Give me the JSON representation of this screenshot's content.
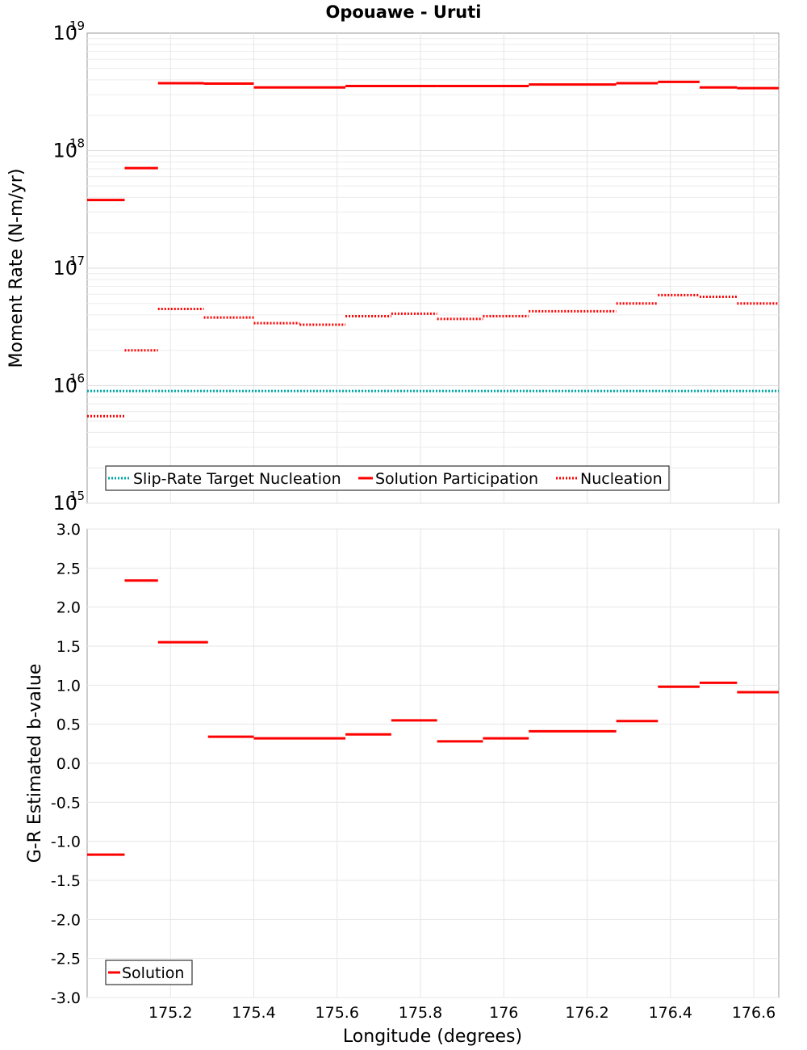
{
  "title": "Opouawe - Uruti",
  "chart_data": [
    {
      "type": "line",
      "subtype": "step-segments",
      "ylabel": "Moment Rate (N-m/yr)",
      "yscale": "log",
      "ylim": [
        1000000000000000.0,
        1e+19
      ],
      "xlim": [
        175.0,
        176.66
      ],
      "y_tick_labels": [
        {
          "base": "10",
          "exp": "15",
          "value": 1000000000000000.0
        },
        {
          "base": "10",
          "exp": "16",
          "value": 1e+16
        },
        {
          "base": "10",
          "exp": "17",
          "value": 1e+17
        },
        {
          "base": "10",
          "exp": "18",
          "value": 1e+18
        },
        {
          "base": "10",
          "exp": "19",
          "value": 1e+19
        }
      ],
      "grid": true,
      "legend_position": "bottom-left",
      "legend": [
        "Slip-Rate Target Nucleation",
        "Solution Participation",
        "Nucleation"
      ],
      "series": [
        {
          "name": "Slip-Rate Target Nucleation",
          "color": "#00aaaa",
          "style": "dotted",
          "segments": [
            {
              "x": [
                175.0,
                176.66
              ],
              "y": 9000000000000000.0
            }
          ]
        },
        {
          "name": "Solution Participation",
          "color": "#ff0000",
          "style": "solid",
          "segments": [
            {
              "x": [
                175.0,
                175.09
              ],
              "y": 3.8e+17
            },
            {
              "x": [
                175.09,
                175.17
              ],
              "y": 7.1e+17
            },
            {
              "x": [
                175.17,
                175.28
              ],
              "y": 3.75e+18
            },
            {
              "x": [
                175.28,
                175.4
              ],
              "y": 3.72e+18
            },
            {
              "x": [
                175.4,
                175.62
              ],
              "y": 3.45e+18
            },
            {
              "x": [
                175.62,
                175.84
              ],
              "y": 3.55e+18
            },
            {
              "x": [
                175.84,
                176.06
              ],
              "y": 3.55e+18
            },
            {
              "x": [
                176.06,
                176.27
              ],
              "y": 3.65e+18
            },
            {
              "x": [
                176.27,
                176.37
              ],
              "y": 3.75e+18
            },
            {
              "x": [
                176.37,
                176.47
              ],
              "y": 3.85e+18
            },
            {
              "x": [
                176.47,
                176.56
              ],
              "y": 3.45e+18
            },
            {
              "x": [
                176.56,
                176.66
              ],
              "y": 3.4e+18
            }
          ]
        },
        {
          "name": "Nucleation",
          "color": "#ff0000",
          "style": "dotted",
          "segments": [
            {
              "x": [
                175.0,
                175.09
              ],
              "y": 5500000000000000.0
            },
            {
              "x": [
                175.09,
                175.17
              ],
              "y": 2e+16
            },
            {
              "x": [
                175.17,
                175.28
              ],
              "y": 4.5e+16
            },
            {
              "x": [
                175.28,
                175.4
              ],
              "y": 3.8e+16
            },
            {
              "x": [
                175.4,
                175.51
              ],
              "y": 3.4e+16
            },
            {
              "x": [
                175.51,
                175.62
              ],
              "y": 3.3e+16
            },
            {
              "x": [
                175.62,
                175.73
              ],
              "y": 3.9e+16
            },
            {
              "x": [
                175.73,
                175.84
              ],
              "y": 4.1e+16
            },
            {
              "x": [
                175.84,
                175.95
              ],
              "y": 3.7e+16
            },
            {
              "x": [
                175.95,
                176.06
              ],
              "y": 3.9e+16
            },
            {
              "x": [
                176.06,
                176.27
              ],
              "y": 4.3e+16
            },
            {
              "x": [
                176.27,
                176.37
              ],
              "y": 5e+16
            },
            {
              "x": [
                176.37,
                176.47
              ],
              "y": 5.9e+16
            },
            {
              "x": [
                176.47,
                176.56
              ],
              "y": 5.7e+16
            },
            {
              "x": [
                176.56,
                176.66
              ],
              "y": 5e+16
            }
          ]
        }
      ]
    },
    {
      "type": "line",
      "subtype": "step-segments",
      "xlabel": "Longitude (degrees)",
      "ylabel": "G-R Estimated b-value",
      "ylim": [
        -3.0,
        3.0
      ],
      "xlim": [
        175.0,
        176.66
      ],
      "x_ticks": [
        175.2,
        175.4,
        175.6,
        175.8,
        176.0,
        176.2,
        176.4,
        176.6
      ],
      "x_tick_labels": [
        "175.2",
        "175.4",
        "175.6",
        "175.8",
        "176",
        "176.2",
        "176.4",
        "176.6"
      ],
      "y_ticks": [
        3.0,
        2.5,
        2.0,
        1.5,
        1.0,
        0.5,
        0.0,
        -0.5,
        -1.0,
        -1.5,
        -2.0,
        -2.5,
        -3.0
      ],
      "y_tick_labels": [
        "3.0",
        "2.5",
        "2.0",
        "1.5",
        "1.0",
        "0.5",
        "0.0",
        "-0.5",
        "-1.0",
        "-1.5",
        "-2.0",
        "-2.5",
        "-3.0"
      ],
      "grid": true,
      "legend_position": "bottom-left",
      "legend": [
        "Solution"
      ],
      "series": [
        {
          "name": "Solution",
          "color": "#ff0000",
          "style": "solid",
          "segments": [
            {
              "x": [
                175.0,
                175.09
              ],
              "y": -1.17
            },
            {
              "x": [
                175.09,
                175.17
              ],
              "y": 2.34
            },
            {
              "x": [
                175.17,
                175.29
              ],
              "y": 1.55
            },
            {
              "x": [
                175.29,
                175.4
              ],
              "y": 0.34
            },
            {
              "x": [
                175.4,
                175.62
              ],
              "y": 0.32
            },
            {
              "x": [
                175.62,
                175.73
              ],
              "y": 0.37
            },
            {
              "x": [
                175.73,
                175.84
              ],
              "y": 0.55
            },
            {
              "x": [
                175.84,
                175.95
              ],
              "y": 0.28
            },
            {
              "x": [
                175.95,
                176.06
              ],
              "y": 0.32
            },
            {
              "x": [
                176.06,
                176.27
              ],
              "y": 0.41
            },
            {
              "x": [
                176.27,
                176.37
              ],
              "y": 0.54
            },
            {
              "x": [
                176.37,
                176.47
              ],
              "y": 0.98
            },
            {
              "x": [
                176.47,
                176.56
              ],
              "y": 1.03
            },
            {
              "x": [
                176.56,
                176.66
              ],
              "y": 0.91
            }
          ]
        }
      ]
    }
  ]
}
